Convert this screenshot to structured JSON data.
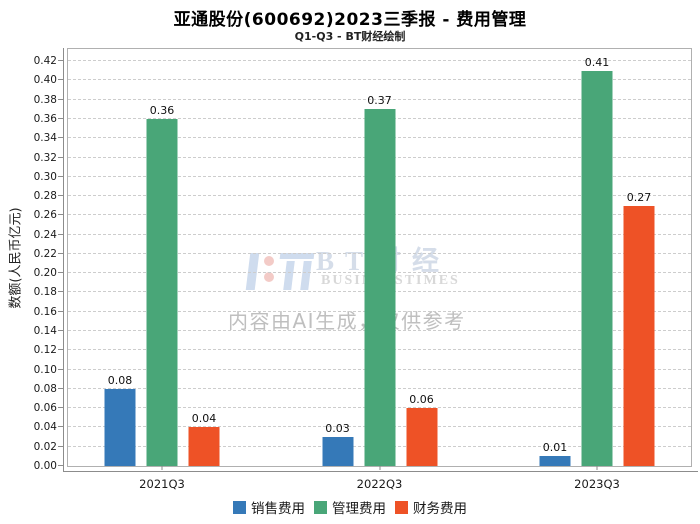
{
  "title": "亚通股份(600692)2023三季报 - 费用管理",
  "subtitle": "Q1-Q3 - BT财经绘制",
  "watermark": {
    "logo_icon": "bt-caijing-logo",
    "brand_cn": "BT财经",
    "brand_en": "BUSINESSTIMES",
    "disclaimer": "内容由AI生成，仅供参考"
  },
  "colors": {
    "sales_blue": "#3579B8",
    "admin_green": "#49A678",
    "finance_orange": "#EE5226",
    "grid": "#cdcdcd",
    "axis": "#8c8c8c"
  },
  "chart_data": {
    "type": "bar",
    "categories": [
      "2021Q3",
      "2022Q3",
      "2023Q3"
    ],
    "series": [
      {
        "name": "销售费用",
        "color": "#3579B8",
        "values": [
          0.08,
          0.03,
          0.01
        ]
      },
      {
        "name": "管理费用",
        "color": "#49A678",
        "values": [
          0.36,
          0.37,
          0.41
        ]
      },
      {
        "name": "财务费用",
        "color": "#EE5226",
        "values": [
          0.04,
          0.06,
          0.27
        ]
      }
    ],
    "title": "亚通股份(600692)2023三季报 - 费用管理",
    "subtitle": "Q1-Q3 - BT财经绘制",
    "xlabel": "",
    "ylabel": "数额(人民币亿元)",
    "ylim": [
      0,
      0.42
    ],
    "ytick_step": 0.02,
    "value_label_decimals": 2,
    "grid": true,
    "grid_style": "dashed",
    "legend_position": "bottom",
    "value_labels": true
  }
}
